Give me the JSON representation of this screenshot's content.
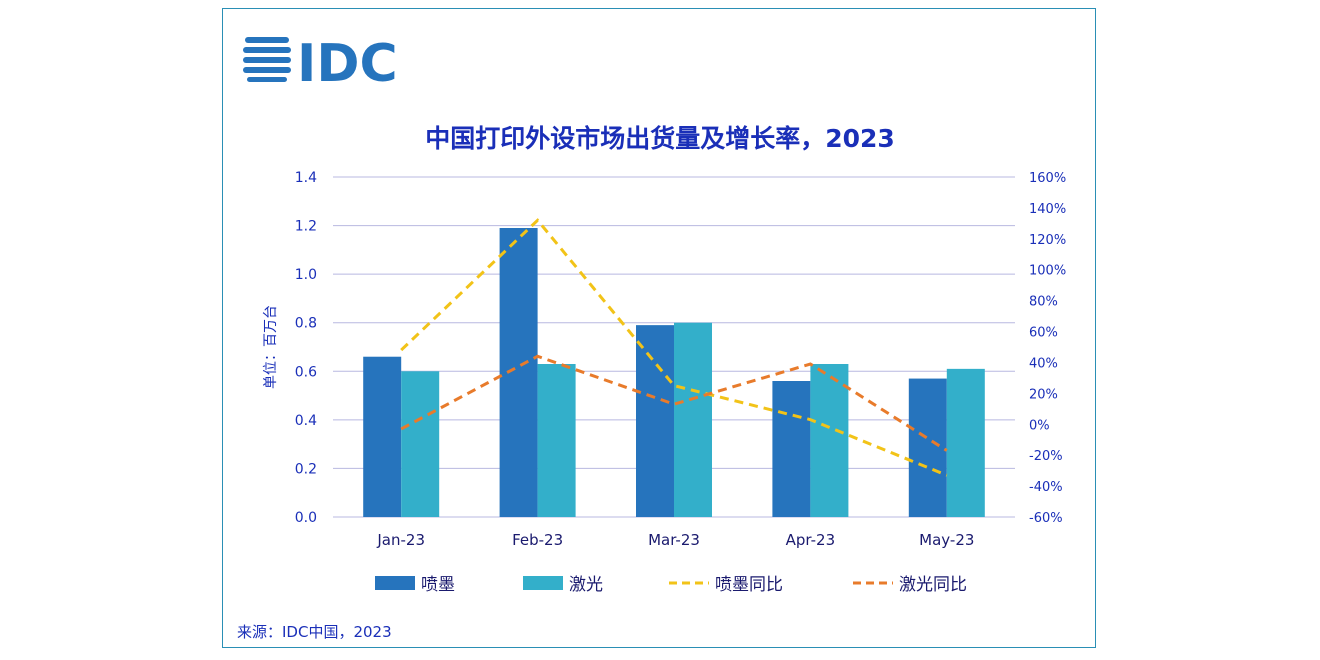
{
  "logo": {
    "text": "IDC"
  },
  "title": "中国打印外设市场出货量及增长率，2023",
  "source": "来源：IDC中国，2023",
  "colors": {
    "inkjet": "#2674bd",
    "laser": "#33afca",
    "inkjet_yoy": "#f2c318",
    "laser_yoy": "#e87b2b",
    "axis_text": "#1a2fb8",
    "grid": "#b8b8e0"
  },
  "chart_data": {
    "type": "bar",
    "title": "中国打印外设市场出货量及增长率，2023",
    "categories": [
      "Jan-23",
      "Feb-23",
      "Mar-23",
      "Apr-23",
      "May-23"
    ],
    "ylabel": "单位：百万台",
    "ylim": [
      0,
      1.4
    ],
    "yticks": [
      "0.0",
      "0.2",
      "0.4",
      "0.6",
      "0.8",
      "1.0",
      "1.2",
      "1.4"
    ],
    "y2lim": [
      -60,
      160
    ],
    "y2ticks": [
      "-60%",
      "-40%",
      "-20%",
      "0%",
      "20%",
      "40%",
      "60%",
      "80%",
      "100%",
      "120%",
      "140%",
      "160%"
    ],
    "grid": true,
    "legend_position": "bottom",
    "series": [
      {
        "name": "喷墨",
        "type": "bar",
        "values": [
          0.66,
          1.19,
          0.79,
          0.56,
          0.57
        ]
      },
      {
        "name": "激光",
        "type": "bar",
        "values": [
          0.6,
          0.63,
          0.8,
          0.63,
          0.61
        ]
      },
      {
        "name": "喷墨同比",
        "type": "line",
        "axis": "right",
        "values": [
          48,
          132,
          25,
          3,
          -33
        ]
      },
      {
        "name": "激光同比",
        "type": "line",
        "axis": "right",
        "values": [
          -3,
          44,
          13,
          39,
          -17
        ]
      }
    ]
  }
}
